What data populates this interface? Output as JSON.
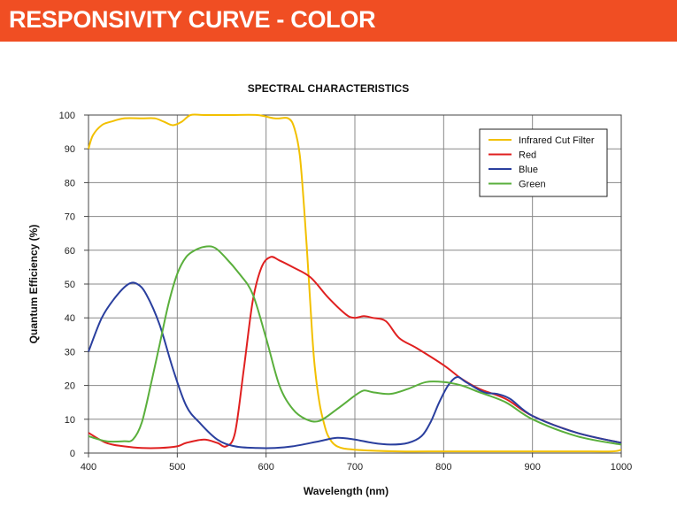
{
  "header": {
    "title": "RESPONSIVITY CURVE - COLOR",
    "color": "#f04e23"
  },
  "chart_data": {
    "type": "line",
    "title": "SPECTRAL CHARACTERISTICS",
    "xlabel": "Wavelength (nm)",
    "ylabel": "Quantum Efficiency (%)",
    "xlim": [
      400,
      1000
    ],
    "ylim": [
      0,
      100
    ],
    "xticks": [
      400,
      500,
      600,
      700,
      800,
      900,
      1000
    ],
    "yticks": [
      0,
      10,
      20,
      30,
      40,
      50,
      60,
      70,
      80,
      90,
      100
    ],
    "grid": true,
    "legend_position": "top-right",
    "series": [
      {
        "name": "Infrared Cut Filter",
        "color": "#f2c000",
        "x": [
          400,
          405,
          415,
          425,
          440,
          460,
          475,
          485,
          495,
          505,
          515,
          530,
          560,
          590,
          610,
          625,
          632,
          638,
          643,
          648,
          652,
          655,
          660,
          665,
          670,
          680,
          700,
          750,
          800,
          850,
          900,
          950,
          990,
          1000
        ],
        "y": [
          90,
          94,
          97,
          98,
          99,
          99,
          99,
          98,
          97,
          98,
          100,
          100,
          100,
          100,
          99,
          99,
          96,
          88,
          72,
          52,
          35,
          25,
          15,
          9,
          5,
          2,
          1,
          0.5,
          0.5,
          0.5,
          0.5,
          0.5,
          0.5,
          1
        ]
      },
      {
        "name": "Red",
        "color": "#e02020",
        "x": [
          400,
          420,
          440,
          460,
          480,
          500,
          510,
          530,
          545,
          555,
          565,
          575,
          585,
          595,
          605,
          615,
          630,
          650,
          670,
          690,
          700,
          710,
          720,
          735,
          750,
          770,
          800,
          820,
          840,
          870,
          900,
          950,
          1000
        ],
        "y": [
          6,
          3,
          2,
          1.5,
          1.5,
          2,
          3,
          4,
          3,
          2,
          6,
          25,
          45,
          55,
          58,
          57,
          55,
          52,
          46,
          41,
          40,
          40.5,
          40,
          39,
          34,
          31,
          26,
          22,
          19,
          16,
          11,
          6,
          3
        ]
      },
      {
        "name": "Blue",
        "color": "#2a3f9e",
        "x": [
          400,
          415,
          430,
          445,
          455,
          465,
          480,
          495,
          510,
          525,
          545,
          565,
          590,
          610,
          630,
          660,
          680,
          700,
          720,
          740,
          760,
          775,
          785,
          795,
          805,
          815,
          825,
          845,
          860,
          875,
          900,
          950,
          1000
        ],
        "y": [
          30,
          40,
          46,
          50,
          50,
          47,
          38,
          25,
          14,
          9,
          4,
          2,
          1.5,
          1.5,
          2,
          3.5,
          4.5,
          4,
          3,
          2.5,
          3,
          5,
          9,
          15,
          20,
          22.5,
          21,
          18,
          17.5,
          16,
          11,
          6,
          3
        ]
      },
      {
        "name": "Green",
        "color": "#5aaf3c",
        "x": [
          400,
          420,
          440,
          450,
          460,
          470,
          480,
          490,
          500,
          510,
          520,
          530,
          540,
          550,
          570,
          585,
          600,
          615,
          630,
          645,
          660,
          680,
          700,
          710,
          720,
          740,
          760,
          780,
          800,
          820,
          840,
          870,
          900,
          950,
          1000
        ],
        "y": [
          5,
          3.5,
          3.5,
          4,
          9,
          20,
          32,
          44,
          53,
          58,
          60,
          61,
          61,
          59,
          53,
          47,
          34,
          20,
          13,
          10,
          9.5,
          13,
          17,
          18.5,
          18,
          17.5,
          19,
          21,
          21,
          20,
          18,
          15,
          10,
          5,
          2.5
        ]
      }
    ]
  }
}
